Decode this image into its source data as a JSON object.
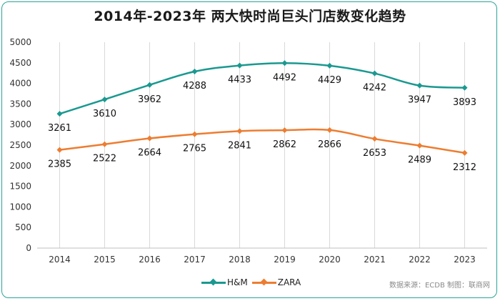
{
  "title": "2014年-2023年 两大快时尚巨头门店数变化趋势",
  "source": "数据来源：ECDB  制图：联商网",
  "colors": {
    "frame": "#2aa59a",
    "hm": "#1a9990",
    "zara": "#ed7d31",
    "grid": "#d9d9d9"
  },
  "chart_data": {
    "type": "line",
    "title": "2014年-2023年 两大快时尚巨头门店数变化趋势",
    "xlabel": "",
    "ylabel": "",
    "categories": [
      "2014",
      "2015",
      "2016",
      "2017",
      "2018",
      "2019",
      "2020",
      "2021",
      "2022",
      "2023"
    ],
    "ylim": [
      0,
      5000
    ],
    "yticks": [
      0,
      500,
      1000,
      1500,
      2000,
      2500,
      3000,
      3500,
      4000,
      4500,
      5000
    ],
    "series": [
      {
        "name": "H&M",
        "color": "#1a9990",
        "values": [
          3261,
          3610,
          3962,
          4288,
          4433,
          4492,
          4429,
          4242,
          3947,
          3893
        ]
      },
      {
        "name": "ZARA",
        "color": "#ed7d31",
        "values": [
          2385,
          2522,
          2664,
          2765,
          2841,
          2862,
          2866,
          2653,
          2489,
          2312
        ]
      }
    ],
    "legend": "bottom-center",
    "grid": "vertical"
  }
}
